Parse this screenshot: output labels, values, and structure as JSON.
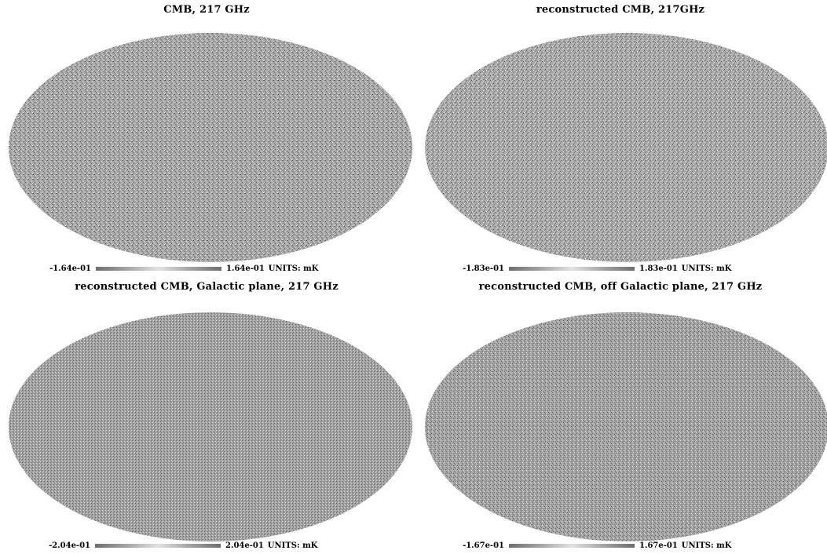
{
  "panels": [
    {
      "title": "CMB, 217 GHz",
      "colorbar": {
        "min": "-1.64e-01",
        "max": "1.64e-01",
        "units": "UNITS: mK"
      }
    },
    {
      "title": "reconstructed CMB, 217GHz",
      "colorbar": {
        "min": "-1.83e-01",
        "max": "1.83e-01",
        "units": "UNITS: mK"
      }
    },
    {
      "title": "reconstructed CMB, Galactic plane, 217 GHz",
      "colorbar": {
        "min": "-2.04e-01",
        "max": "2.04e-01",
        "units": "UNITS: mK"
      }
    },
    {
      "title": "reconstructed CMB, off Galactic plane, 217 GHz",
      "colorbar": {
        "min": "-1.67e-01",
        "max": "1.67e-01",
        "units": "UNITS: mK"
      }
    }
  ],
  "colors": {
    "map_fill": "#9a9a9a",
    "colorbar_dark": "#6e6e6e",
    "colorbar_light": "#e2e2e2"
  }
}
